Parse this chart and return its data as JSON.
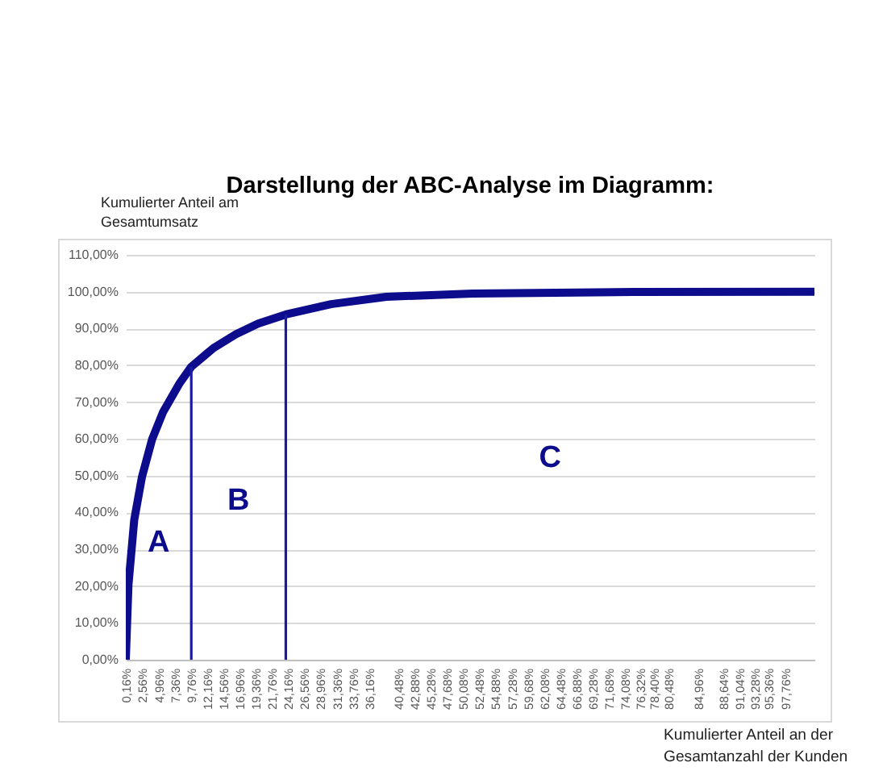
{
  "chart_data": {
    "type": "line",
    "title": "Darstellung der ABC-Analyse im Diagramm:",
    "xlabel": "Kumulierter Anteil an der\nGesamtanzahl der Kunden",
    "ylabel": "Kumulierter Anteil am\nGesamtumsatz",
    "series": [
      {
        "color": "#0c0c8c",
        "x": [
          0,
          0.4,
          1.25,
          2.4,
          3.9,
          5.5,
          8.0,
          9.7,
          13.0,
          16.3,
          19.6,
          23.7,
          30.4,
          38.6,
          51.4,
          75.2,
          102
        ],
        "values": [
          0,
          20.5,
          38,
          49.7,
          59.9,
          67.2,
          75.2,
          79.6,
          84.7,
          88.4,
          91.3,
          93.8,
          96.6,
          98.6,
          99.5,
          99.9,
          100
        ]
      },
      {
        "color": "#1a1aa6",
        "x": [
          9.7,
          9.7
        ],
        "values": [
          0,
          79.6
        ]
      },
      {
        "color": "#1a1aa6",
        "x": [
          23.7,
          23.7
        ],
        "values": [
          0,
          93.8
        ]
      }
    ],
    "xlim": [
      0,
      102
    ],
    "xticks": [
      {
        "value": 0.16,
        "label": "0,16%"
      },
      {
        "value": 2.56,
        "label": "2,56%"
      },
      {
        "value": 4.96,
        "label": "4,96%"
      },
      {
        "value": 7.36,
        "label": "7,36%"
      },
      {
        "value": 9.76,
        "label": "9,76%"
      },
      {
        "value": 12.16,
        "label": "12,16%"
      },
      {
        "value": 14.56,
        "label": "14,56%"
      },
      {
        "value": 16.96,
        "label": "16,96%"
      },
      {
        "value": 19.36,
        "label": "19,36%"
      },
      {
        "value": 21.76,
        "label": "21,76%"
      },
      {
        "value": 24.16,
        "label": "24,16%"
      },
      {
        "value": 26.56,
        "label": "26,56%"
      },
      {
        "value": 28.96,
        "label": "28,96%"
      },
      {
        "value": 31.36,
        "label": "31,36%"
      },
      {
        "value": 33.76,
        "label": "33,76%"
      },
      {
        "value": 36.16,
        "label": "36,16%"
      },
      {
        "value": 40.48,
        "label": "40,48%"
      },
      {
        "value": 42.88,
        "label": "42,88%"
      },
      {
        "value": 45.28,
        "label": "45,28%"
      },
      {
        "value": 47.68,
        "label": "47,68%"
      },
      {
        "value": 50.08,
        "label": "50,08%"
      },
      {
        "value": 52.48,
        "label": "52,48%"
      },
      {
        "value": 54.88,
        "label": "54,88%"
      },
      {
        "value": 57.28,
        "label": "57,28%"
      },
      {
        "value": 59.68,
        "label": "59,68%"
      },
      {
        "value": 62.08,
        "label": "62,08%"
      },
      {
        "value": 64.48,
        "label": "64,48%"
      },
      {
        "value": 66.88,
        "label": "66,88%"
      },
      {
        "value": 69.28,
        "label": "69,28%"
      },
      {
        "value": 71.68,
        "label": "71,68%"
      },
      {
        "value": 74.08,
        "label": "74,08%"
      },
      {
        "value": 76.32,
        "label": "76,32%"
      },
      {
        "value": 78.4,
        "label": "78,40%"
      },
      {
        "value": 80.48,
        "label": "80,48%"
      },
      {
        "value": 84.96,
        "label": "84,96%"
      },
      {
        "value": 88.64,
        "label": "88,64%"
      },
      {
        "value": 91.04,
        "label": "91,04%"
      },
      {
        "value": 93.28,
        "label": "93,28%"
      },
      {
        "value": 95.36,
        "label": "95,36%"
      },
      {
        "value": 97.76,
        "label": "97,76%"
      }
    ],
    "ylim": [
      0,
      110
    ],
    "yticks": [
      {
        "value": 0,
        "label": "0,00%"
      },
      {
        "value": 10,
        "label": "10,00%"
      },
      {
        "value": 20,
        "label": "20,00%"
      },
      {
        "value": 30,
        "label": "30,00%"
      },
      {
        "value": 40,
        "label": "40,00%"
      },
      {
        "value": 50,
        "label": "50,00%"
      },
      {
        "value": 60,
        "label": "60,00%"
      },
      {
        "value": 70,
        "label": "70,00%"
      },
      {
        "value": 80,
        "label": "80,00%"
      },
      {
        "value": 90,
        "label": "90,00%"
      },
      {
        "value": 100,
        "label": "100,00%"
      },
      {
        "value": 110,
        "label": "110,00%"
      }
    ],
    "grid": "y",
    "annotations": [
      "A",
      "B",
      "C"
    ]
  }
}
